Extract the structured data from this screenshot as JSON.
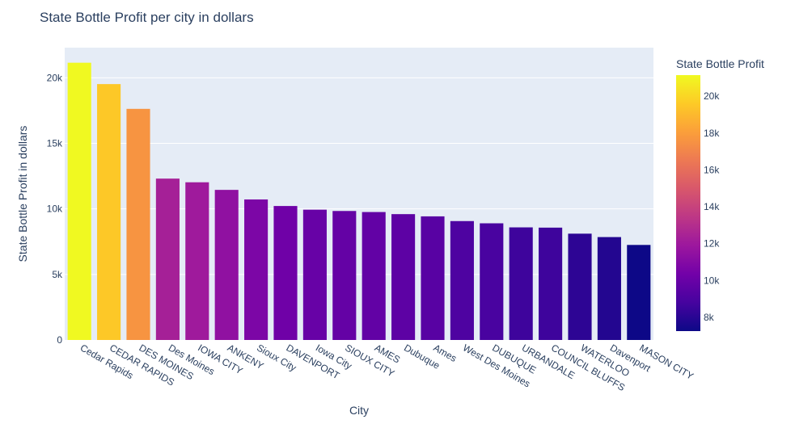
{
  "chart_data": {
    "type": "bar",
    "title": "State Bottle Profit per city in dollars",
    "xlabel": "City",
    "ylabel": "State Bottle Profit in dollars",
    "categories": [
      "Cedar Rapids",
      "CEDAR RAPIDS",
      "DES MOINES",
      "Des Moines",
      "IOWA CITY",
      "ANKENY",
      "Sioux City",
      "DAVENPORT",
      "Iowa City",
      "SIOUX CITY",
      "AMES",
      "Dubuque",
      "Ames",
      "West Des Moines",
      "DUBUQUE",
      "URBANDALE",
      "COUNCIL BLUFFS",
      "WATERLOO",
      "Davenport",
      "MASON CITY"
    ],
    "values": [
      21150,
      19520,
      17630,
      12310,
      12030,
      11450,
      10720,
      10220,
      9940,
      9840,
      9760,
      9600,
      9430,
      9070,
      8900,
      8590,
      8570,
      8110,
      7850,
      7250
    ],
    "ylim": [
      0,
      22300
    ],
    "yticks": [
      0,
      5000,
      10000,
      15000,
      20000
    ],
    "ytick_labels": [
      "0",
      "5k",
      "10k",
      "15k",
      "20k"
    ],
    "grid": true,
    "colorbar": {
      "title": "State Bottle Profit",
      "range": [
        7250,
        21150
      ],
      "ticks": [
        8000,
        10000,
        12000,
        14000,
        16000,
        18000,
        20000
      ],
      "tick_labels": [
        "8k",
        "10k",
        "12k",
        "14k",
        "16k",
        "18k",
        "20k"
      ],
      "colorscale": [
        "#0d0887",
        "#46039f",
        "#7201a8",
        "#9c179e",
        "#bd3786",
        "#d8576b",
        "#ed7953",
        "#fb9f3a",
        "#fdca26",
        "#f0f921"
      ]
    },
    "colors": {
      "plot_bg": "#e5ecf6",
      "grid": "#ffffff",
      "text": "#2a3f5f",
      "tick_text": "#506784"
    }
  }
}
